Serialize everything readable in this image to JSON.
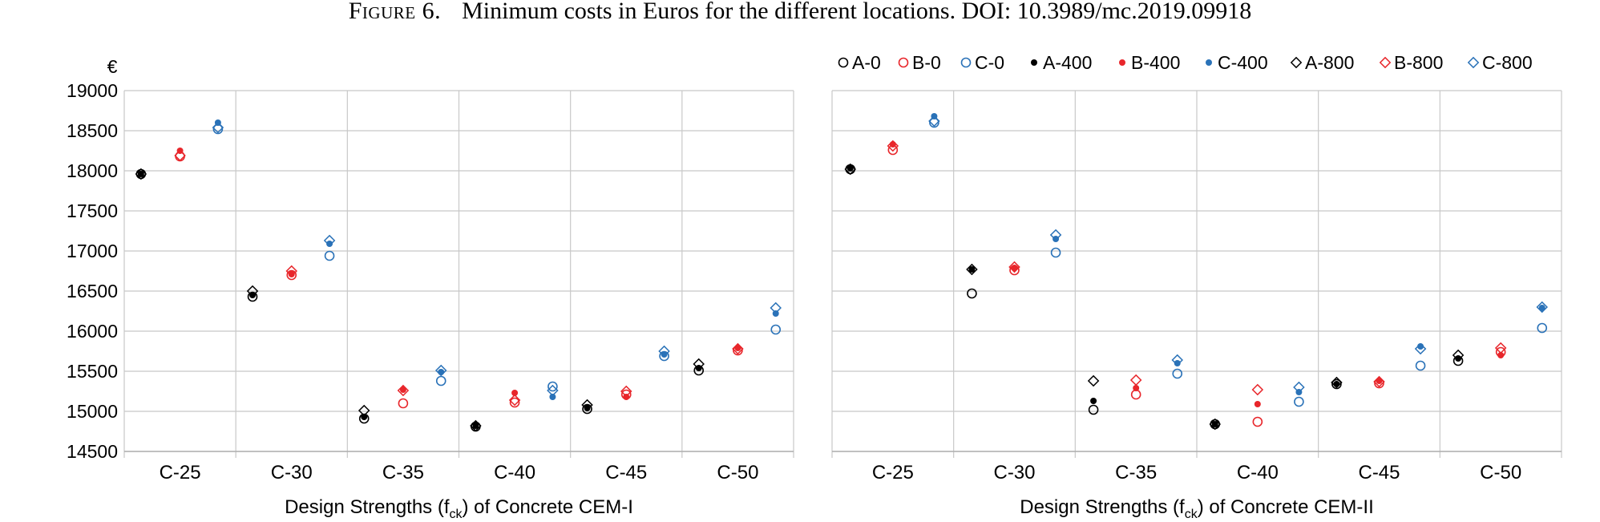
{
  "figure": {
    "label": "Figure 6.",
    "caption": "Minimum costs in Euros for the different locations. DOI: 10.3989/mc.2019.09918"
  },
  "legend": {
    "entries": [
      {
        "name": "A-0",
        "color": "#000000",
        "marker": "open-circle"
      },
      {
        "name": "B-0",
        "color": "#e8262b",
        "marker": "open-circle"
      },
      {
        "name": "C-0",
        "color": "#2a72b8",
        "marker": "open-circle"
      },
      {
        "name": "A-400",
        "color": "#000000",
        "marker": "filled-circle"
      },
      {
        "name": "B-400",
        "color": "#e8262b",
        "marker": "filled-circle"
      },
      {
        "name": "C-400",
        "color": "#2a72b8",
        "marker": "filled-circle"
      },
      {
        "name": "A-800",
        "color": "#000000",
        "marker": "open-diamond"
      },
      {
        "name": "B-800",
        "color": "#e8262b",
        "marker": "open-diamond"
      },
      {
        "name": "C-800",
        "color": "#2a72b8",
        "marker": "open-diamond"
      }
    ]
  },
  "chart_data": [
    {
      "type": "scatter",
      "xlabel_main": "Design Strengths (f",
      "xlabel_sub": "ck",
      "xlabel_tail": ") of Concrete CEM-I",
      "ylabel": "€",
      "ylim": [
        14500,
        19000
      ],
      "yticks": [
        14500,
        15000,
        15500,
        16000,
        16500,
        17000,
        17500,
        18000,
        18500,
        19000
      ],
      "categories": [
        "C-25",
        "C-30",
        "C-35",
        "C-40",
        "C-45",
        "C-50"
      ],
      "grid": true,
      "series": [
        {
          "name": "A-0",
          "values": [
            17960,
            16430,
            14910,
            14810,
            15030,
            15510
          ]
        },
        {
          "name": "B-0",
          "values": [
            18180,
            16700,
            15100,
            15110,
            15210,
            15760
          ]
        },
        {
          "name": "C-0",
          "values": [
            18520,
            16940,
            15380,
            15310,
            15690,
            16020
          ]
        },
        {
          "name": "A-400",
          "values": [
            17960,
            16450,
            14930,
            14820,
            15040,
            15540
          ]
        },
        {
          "name": "B-400",
          "values": [
            18250,
            16710,
            15270,
            15230,
            15180,
            15790
          ]
        },
        {
          "name": "C-400",
          "values": [
            18600,
            17090,
            15490,
            15180,
            15710,
            16220
          ]
        },
        {
          "name": "A-800",
          "values": [
            17960,
            16500,
            15010,
            14820,
            15080,
            15590
          ]
        },
        {
          "name": "B-800",
          "values": [
            18190,
            16750,
            15260,
            15140,
            15250,
            15780
          ]
        },
        {
          "name": "C-800",
          "values": [
            18540,
            17130,
            15510,
            15260,
            15750,
            16290
          ]
        }
      ]
    },
    {
      "type": "scatter",
      "xlabel_main": "Design Strengths (f",
      "xlabel_sub": "ck",
      "xlabel_tail": ") of Concrete CEM-II",
      "ylabel": "",
      "ylim": [
        14500,
        19000
      ],
      "yticks": [
        14500,
        15000,
        15500,
        16000,
        16500,
        17000,
        17500,
        18000,
        18500,
        19000
      ],
      "categories": [
        "C-25",
        "C-30",
        "C-35",
        "C-40",
        "C-45",
        "C-50"
      ],
      "grid": true,
      "series": [
        {
          "name": "A-0",
          "values": [
            18020,
            16470,
            15020,
            14840,
            15340,
            15630
          ]
        },
        {
          "name": "B-0",
          "values": [
            18260,
            16760,
            15210,
            14870,
            15350,
            15740
          ]
        },
        {
          "name": "C-0",
          "values": [
            18600,
            16980,
            15470,
            15120,
            15570,
            16040
          ]
        },
        {
          "name": "A-400",
          "values": [
            18030,
            16770,
            15130,
            14840,
            15340,
            15660
          ]
        },
        {
          "name": "B-400",
          "values": [
            18330,
            16790,
            15290,
            15090,
            15380,
            15700
          ]
        },
        {
          "name": "C-400",
          "values": [
            18680,
            17150,
            15600,
            15240,
            15810,
            16290
          ]
        },
        {
          "name": "A-800",
          "values": [
            18020,
            16770,
            15380,
            14840,
            15360,
            15700
          ]
        },
        {
          "name": "B-800",
          "values": [
            18310,
            16800,
            15390,
            15270,
            15370,
            15790
          ]
        },
        {
          "name": "C-800",
          "values": [
            18620,
            17200,
            15640,
            15300,
            15780,
            16300
          ]
        }
      ]
    }
  ]
}
